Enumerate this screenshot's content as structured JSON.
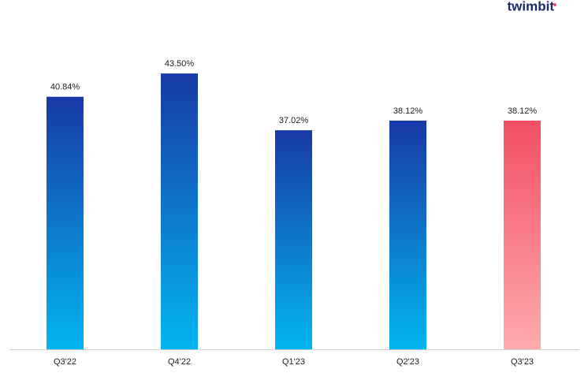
{
  "logo": "twimbit",
  "chart_data": {
    "type": "bar",
    "categories": [
      "Q3'22",
      "Q4'22",
      "Q1'23",
      "Q2'23",
      "Q3'23"
    ],
    "values": [
      40.84,
      43.5,
      37.02,
      38.12,
      38.12
    ],
    "value_labels": [
      "40.84%",
      "43.50%",
      "37.02%",
      "38.12%",
      "38.12%"
    ],
    "colors": [
      [
        "#1739a8",
        "#03b5f2"
      ],
      [
        "#1739a8",
        "#03b5f2"
      ],
      [
        "#1739a8",
        "#03b5f2"
      ],
      [
        "#1739a8",
        "#03b5f2"
      ],
      [
        "#f24f63",
        "#ffabae"
      ]
    ],
    "ylim": [
      12,
      50
    ]
  }
}
